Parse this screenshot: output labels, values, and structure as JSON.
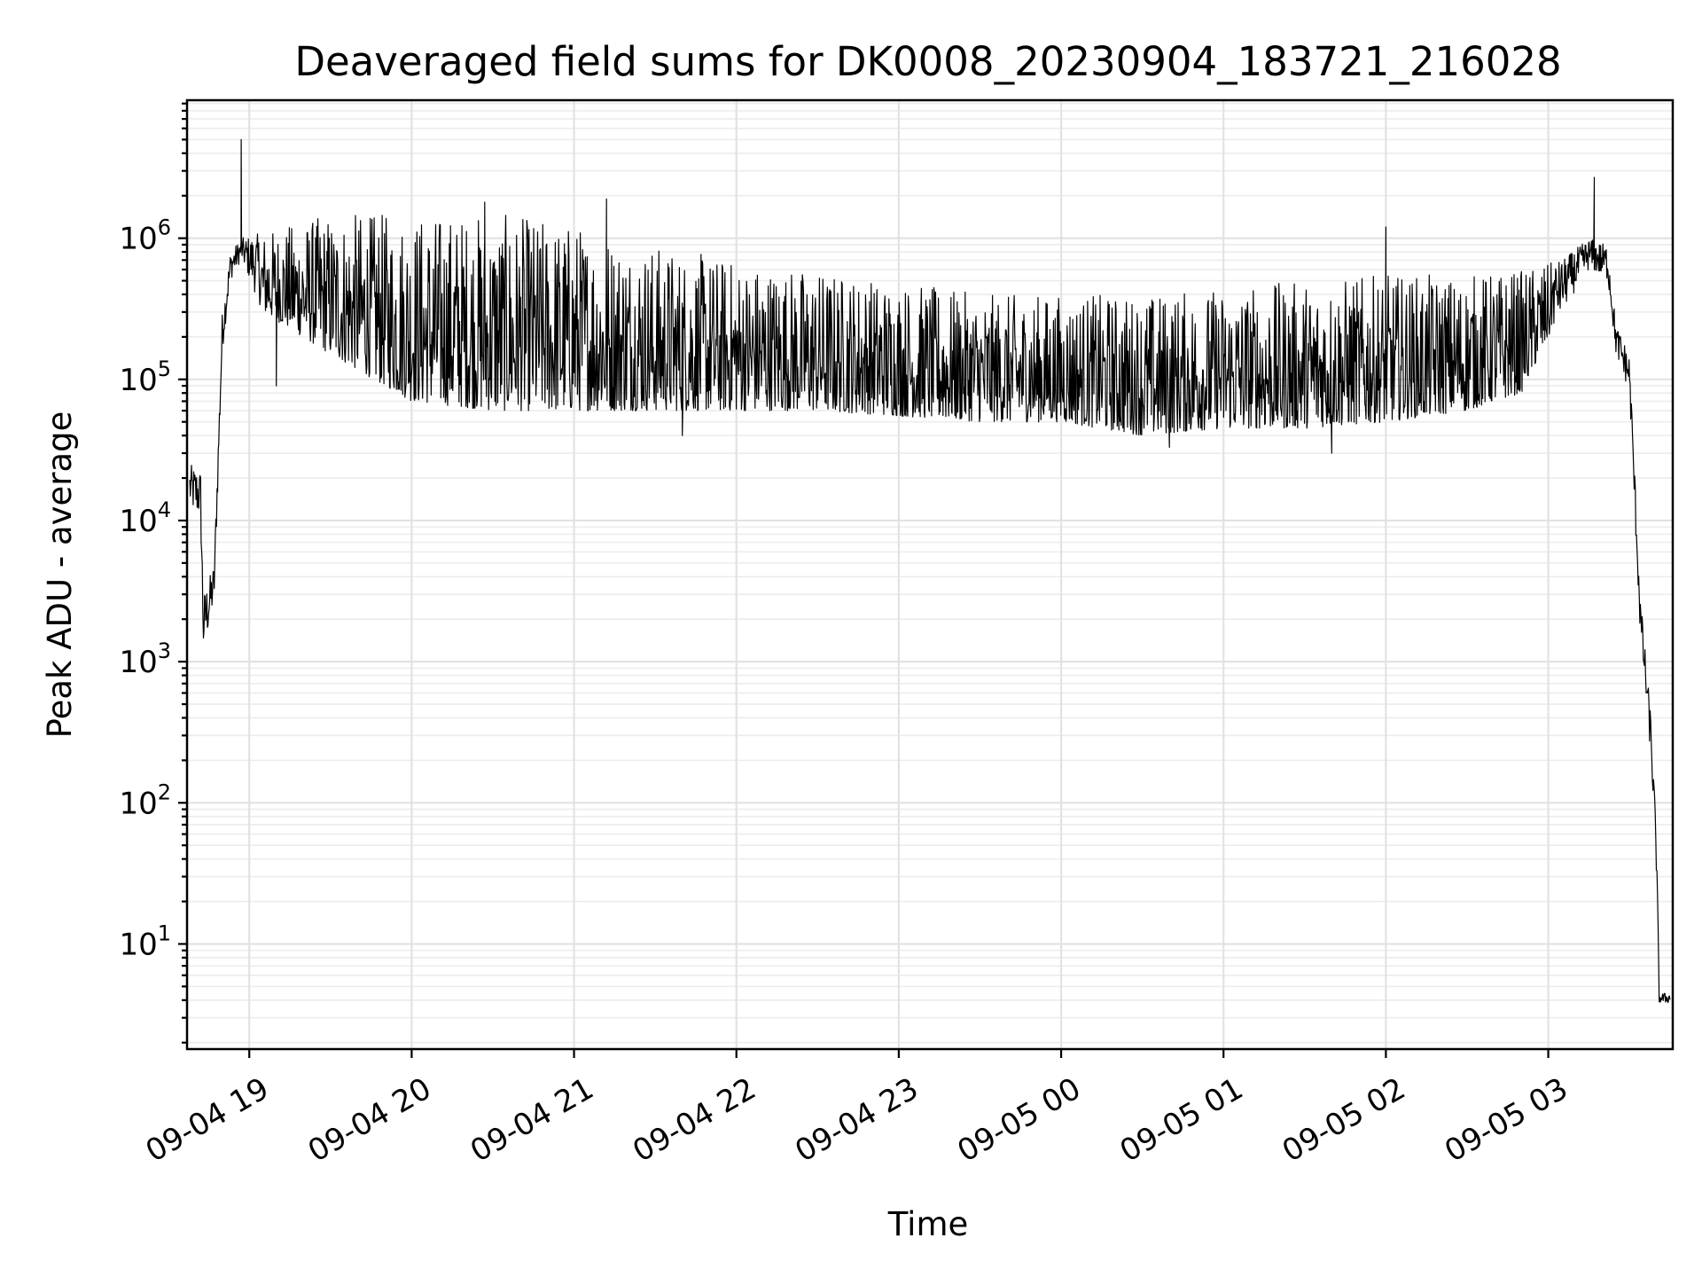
{
  "chart_data": {
    "type": "line",
    "title": "Deaveraged field sums for DK0008_20230904_183721_216028",
    "xlabel": "Time",
    "ylabel": "Peak ADU - average",
    "yscale": "log",
    "grid": true,
    "grid_minor": true,
    "xlim": [
      "2023-09-04 18:37",
      "2023-09-05 03:46"
    ],
    "ylim": [
      1.8,
      9500000
    ],
    "x_ticks": [
      "09-04 19",
      "09-04 20",
      "09-04 21",
      "09-04 22",
      "09-04 23",
      "09-05 00",
      "09-05 01",
      "09-05 02",
      "09-05 03"
    ],
    "x_tick_times": [
      "2023-09-04 19:00",
      "2023-09-04 20:00",
      "2023-09-04 21:00",
      "2023-09-04 22:00",
      "2023-09-04 23:00",
      "2023-09-05 00:00",
      "2023-09-05 01:00",
      "2023-09-05 02:00",
      "2023-09-05 03:00"
    ],
    "y_ticks": [
      {
        "base": "10",
        "exp": "1",
        "value": 10
      },
      {
        "base": "10",
        "exp": "2",
        "value": 100
      },
      {
        "base": "10",
        "exp": "3",
        "value": 1000
      },
      {
        "base": "10",
        "exp": "4",
        "value": 10000
      },
      {
        "base": "10",
        "exp": "5",
        "value": 100000
      },
      {
        "base": "10",
        "exp": "6",
        "value": 1000000
      }
    ],
    "line_color": "#000000",
    "series": [
      {
        "envelope": [
          {
            "t": "2023-09-04 18:38",
            "low": 12000,
            "high": 25000
          },
          {
            "t": "2023-09-04 18:42",
            "low": 10000,
            "high": 23000
          },
          {
            "t": "2023-09-04 18:43",
            "low": 1100,
            "high": 3000
          },
          {
            "t": "2023-09-04 18:47",
            "low": 2500,
            "high": 5000
          },
          {
            "t": "2023-09-04 18:50",
            "low": 150000,
            "high": 300000
          },
          {
            "t": "2023-09-04 18:53",
            "low": 500000,
            "high": 800000
          },
          {
            "t": "2023-09-04 18:57",
            "low": 700000,
            "high": 1000000
          },
          {
            "t": "2023-09-04 19:05",
            "low": 300000,
            "high": 1100000
          },
          {
            "t": "2023-09-04 19:30",
            "low": 150000,
            "high": 1500000
          },
          {
            "t": "2023-09-04 20:00",
            "low": 70000,
            "high": 1500000
          },
          {
            "t": "2023-09-04 20:30",
            "low": 60000,
            "high": 1500000
          },
          {
            "t": "2023-09-04 21:00",
            "low": 60000,
            "high": 1300000
          },
          {
            "t": "2023-09-04 21:30",
            "low": 60000,
            "high": 900000
          },
          {
            "t": "2023-09-04 22:00",
            "low": 60000,
            "high": 700000
          },
          {
            "t": "2023-09-04 22:30",
            "low": 60000,
            "high": 600000
          },
          {
            "t": "2023-09-04 23:00",
            "low": 55000,
            "high": 500000
          },
          {
            "t": "2023-09-04 23:30",
            "low": 50000,
            "high": 400000
          },
          {
            "t": "2023-09-05 00:00",
            "low": 50000,
            "high": 400000
          },
          {
            "t": "2023-09-05 00:30",
            "low": 40000,
            "high": 400000
          },
          {
            "t": "2023-09-05 01:00",
            "low": 45000,
            "high": 450000
          },
          {
            "t": "2023-09-05 01:30",
            "low": 45000,
            "high": 500000
          },
          {
            "t": "2023-09-05 02:00",
            "low": 50000,
            "high": 550000
          },
          {
            "t": "2023-09-05 02:30",
            "low": 60000,
            "high": 550000
          },
          {
            "t": "2023-09-05 02:50",
            "low": 80000,
            "high": 600000
          },
          {
            "t": "2023-09-05 03:05",
            "low": 300000,
            "high": 700000
          },
          {
            "t": "2023-09-05 03:15",
            "low": 600000,
            "high": 1000000
          },
          {
            "t": "2023-09-05 03:22",
            "low": 500000,
            "high": 900000
          },
          {
            "t": "2023-09-05 03:25",
            "low": 150000,
            "high": 250000
          },
          {
            "t": "2023-09-05 03:30",
            "low": 80000,
            "high": 150000
          },
          {
            "t": "2023-09-05 03:34",
            "low": 1500,
            "high": 3000
          },
          {
            "t": "2023-09-05 03:38",
            "low": 200,
            "high": 400
          },
          {
            "t": "2023-09-05 03:40",
            "low": 30,
            "high": 60
          },
          {
            "t": "2023-09-05 03:41",
            "low": 3.8,
            "high": 4.5
          },
          {
            "t": "2023-09-05 03:45",
            "low": 3.8,
            "high": 4.5
          }
        ],
        "spikes": [
          {
            "t": "2023-09-04 18:57",
            "value": 5000000
          },
          {
            "t": "2023-09-04 19:10",
            "value": 90000
          },
          {
            "t": "2023-09-04 20:27",
            "value": 1800000
          },
          {
            "t": "2023-09-04 21:12",
            "value": 1900000
          },
          {
            "t": "2023-09-04 21:40",
            "value": 40000
          },
          {
            "t": "2023-09-05 00:40",
            "value": 33000
          },
          {
            "t": "2023-09-05 01:40",
            "value": 30000
          },
          {
            "t": "2023-09-05 02:00",
            "value": 1200000
          },
          {
            "t": "2023-09-05 03:17",
            "value": 2700000
          }
        ]
      }
    ]
  }
}
